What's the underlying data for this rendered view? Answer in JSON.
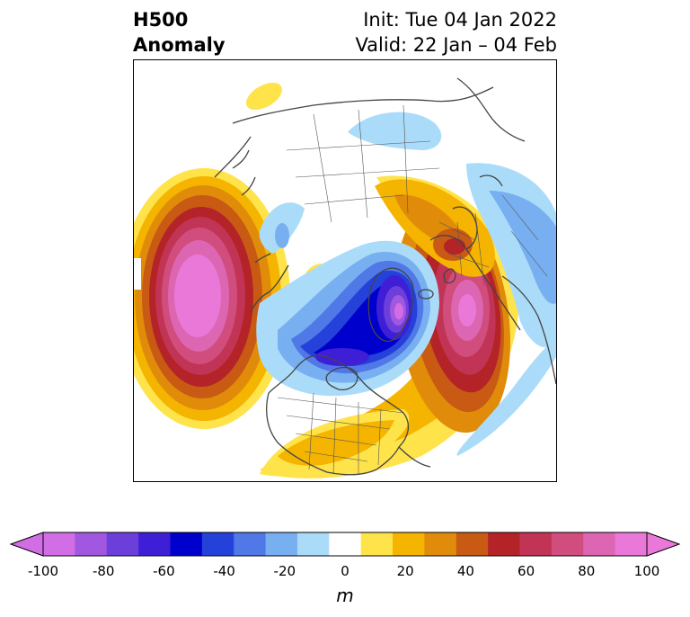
{
  "title": {
    "left_line1": "H500",
    "left_line2": "Anomaly",
    "right_line1": "Init: Tue 04 Jan 2022",
    "right_line2": "Valid: 22 Jan – 04 Feb"
  },
  "colorbar": {
    "unit": "m",
    "ticks": [
      "-100",
      "-80",
      "-60",
      "-40",
      "-20",
      "0",
      "20",
      "40",
      "60",
      "80",
      "100"
    ],
    "levels": [
      -100,
      -90,
      -80,
      -70,
      -60,
      -50,
      -40,
      -30,
      -20,
      -10,
      10,
      20,
      30,
      40,
      50,
      60,
      70,
      80,
      90,
      100
    ],
    "colors": [
      "#d16ee5",
      "#a257e0",
      "#6c3fdb",
      "#3f1fd6",
      "#0000cd",
      "#2441d9",
      "#5078e6",
      "#78aff0",
      "#aadcfa",
      "#ffffff",
      "#ffe34a",
      "#f4b400",
      "#e08c0a",
      "#c85a14",
      "#b42328",
      "#c23455",
      "#d04d7d",
      "#dd66b3",
      "#ea78d9"
    ],
    "extend_low_color": "#d16ee5",
    "extend_high_color": "#ea78d9"
  },
  "map": {
    "projection": "north-polar stereographic",
    "features": [
      "coastlines",
      "country borders",
      "US state borders"
    ],
    "anomaly_centers": [
      {
        "region": "North Pacific",
        "sign": "positive",
        "value": 100
      },
      {
        "region": "North Atlantic",
        "sign": "positive",
        "value": 90
      },
      {
        "region": "Hudson Bay / Canadian Arctic",
        "sign": "negative",
        "value": -95
      },
      {
        "region": "Greenland / Baffin",
        "sign": "negative",
        "value": -90
      },
      {
        "region": "Europe / Scandinavia",
        "sign": "positive",
        "value": 60
      },
      {
        "region": "Eastern United States",
        "sign": "positive",
        "value": 30
      },
      {
        "region": "Siberia",
        "sign": "negative",
        "value": -20
      },
      {
        "region": "Middle East / North Africa",
        "sign": "negative",
        "value": -30
      },
      {
        "region": "Arctic Ocean",
        "sign": "positive",
        "value": 15
      }
    ]
  }
}
